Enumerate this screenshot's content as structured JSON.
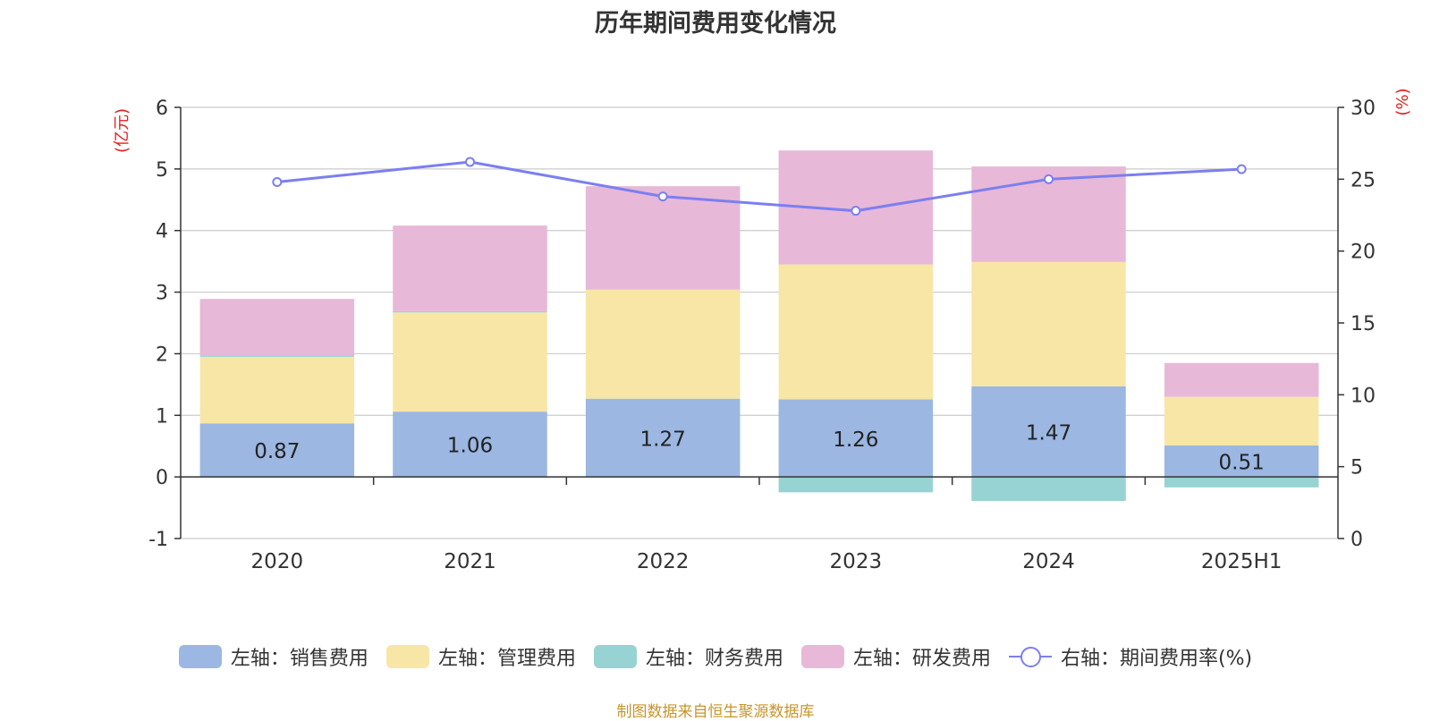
{
  "chart_data": {
    "type": "bar",
    "title": "历年期间费用变化情况",
    "categories": [
      "2020",
      "2021",
      "2022",
      "2023",
      "2024",
      "2025H1"
    ],
    "left_axis": {
      "label": "(亿元)",
      "ylim": [
        -1,
        6
      ],
      "ticks": [
        "6",
        "5",
        "4",
        "3",
        "2",
        "1",
        "0",
        "-1"
      ]
    },
    "right_axis": {
      "label": "(%)",
      "ylim": [
        0,
        30
      ],
      "ticks": [
        "30",
        "25",
        "20",
        "15",
        "10",
        "5",
        "0"
      ]
    },
    "series": [
      {
        "name": "左轴：销售费用",
        "axis": "left",
        "stack": true,
        "color": "#9bb7e2",
        "values": [
          0.87,
          1.06,
          1.27,
          1.26,
          1.47,
          0.51
        ]
      },
      {
        "name": "左轴：管理费用",
        "axis": "left",
        "stack": true,
        "color": "#f8e6a6",
        "values": [
          1.08,
          1.61,
          1.77,
          2.19,
          2.02,
          0.79
        ]
      },
      {
        "name": "左轴：财务费用",
        "axis": "left",
        "stack": true,
        "color": "#98d3d3",
        "values": [
          0.02,
          0.02,
          0.0,
          -0.25,
          -0.39,
          -0.17
        ]
      },
      {
        "name": "左轴：研发费用",
        "axis": "left",
        "stack": true,
        "color": "#e8b8d8",
        "values": [
          0.92,
          1.39,
          1.68,
          1.85,
          1.55,
          0.55
        ]
      },
      {
        "name": "右轴：期间费用率(%)",
        "axis": "right",
        "type": "line",
        "color": "#7b7ff0",
        "values": [
          24.8,
          26.2,
          23.8,
          22.8,
          25.0,
          25.7
        ]
      }
    ],
    "data_labels": [
      "0.87",
      "1.06",
      "1.27",
      "1.26",
      "1.47",
      "0.51"
    ],
    "grid": true,
    "legend_position": "bottom"
  },
  "source": "制图数据来自恒生聚源数据库"
}
